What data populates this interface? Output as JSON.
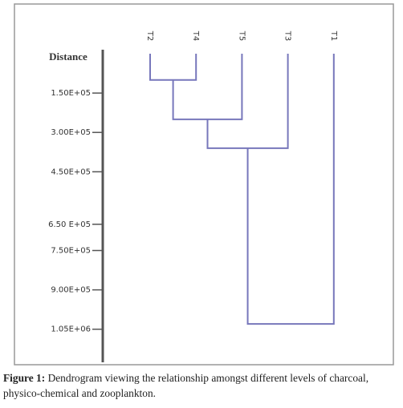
{
  "chart_data": {
    "type": "dendrogram",
    "y_label": "Distance",
    "leaves": [
      "T2",
      "T4",
      "T5",
      "T3",
      "T1"
    ],
    "clusters": [
      {
        "left": [
          "T2"
        ],
        "right": [
          "T4"
        ],
        "height": 100000
      },
      {
        "left": [
          "T2",
          "T4"
        ],
        "right": [
          "T5"
        ],
        "height": 250000
      },
      {
        "left": [
          "T2",
          "T4",
          "T5"
        ],
        "right": [
          "T3"
        ],
        "height": 360000
      },
      {
        "left": [
          "T2",
          "T4",
          "T5",
          "T3"
        ],
        "right": [
          "T1"
        ],
        "height": 1030000
      }
    ],
    "color": "#7777bb",
    "ylim": [
      0,
      1170000
    ],
    "yticks": [
      {
        "value": 150000,
        "label": "1.50E+05"
      },
      {
        "value": 300000,
        "label": "3.00E+05"
      },
      {
        "value": 450000,
        "label": "4.50E+05"
      },
      {
        "value": 650000,
        "label": "6.50 E+05"
      },
      {
        "value": 750000,
        "label": "7.50E+05"
      },
      {
        "value": 900000,
        "label": "9.00E+05"
      },
      {
        "value": 1050000,
        "label": "1.05E+06"
      }
    ]
  },
  "caption": {
    "label": "Figure 1:",
    "text": "Dendrogram viewing the relationship amongst different levels of charcoal, physico-chemical and zooplankton."
  }
}
